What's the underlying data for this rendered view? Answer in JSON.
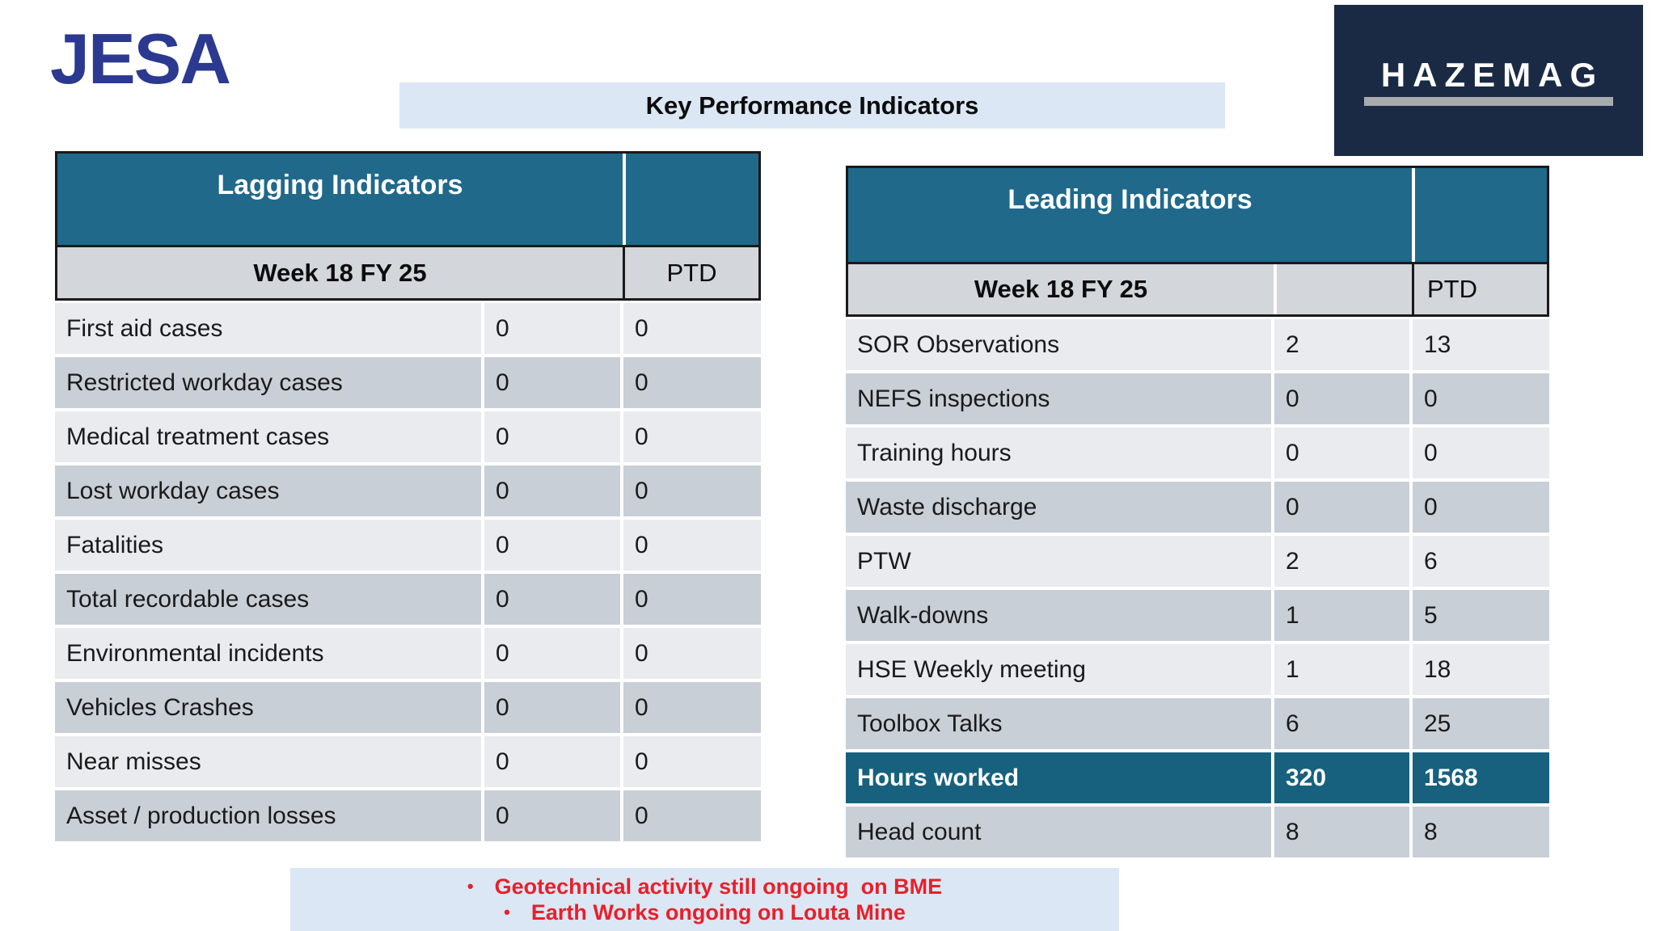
{
  "title": "Key Performance Indicators",
  "logos": {
    "jesa": "JESA",
    "hazemag": "HAZEMAG"
  },
  "lagging": {
    "header": "Lagging   Indicators",
    "week_label": "Week 18 FY 25",
    "ptd_label": "PTD",
    "rows": [
      {
        "label": "First aid cases",
        "week": "0",
        "ptd": "0"
      },
      {
        "label": "Restricted workday cases",
        "week": "0",
        "ptd": "0"
      },
      {
        "label": "Medical treatment cases",
        "week": "0",
        "ptd": "0"
      },
      {
        "label": "Lost workday cases",
        "week": "0",
        "ptd": "0"
      },
      {
        "label": "Fatalities",
        "week": "0",
        "ptd": "0"
      },
      {
        "label": "Total recordable cases",
        "week": "0",
        "ptd": "0"
      },
      {
        "label": "Environmental incidents",
        "week": "0",
        "ptd": "0"
      },
      {
        "label": "Vehicles Crashes",
        "week": "0",
        "ptd": "0"
      },
      {
        "label": "Near misses",
        "week": "0",
        "ptd": "0"
      },
      {
        "label": "Asset / production losses",
        "week": "0",
        "ptd": "0"
      }
    ]
  },
  "leading": {
    "header": "Leading  Indicators",
    "week_label": "Week 18 FY 25",
    "ptd_label": "PTD",
    "rows": [
      {
        "label": "SOR Observations",
        "week": "2",
        "ptd": "13"
      },
      {
        "label": "NEFS inspections",
        "week": "0",
        "ptd": "0"
      },
      {
        "label": "Training hours",
        "week": "0",
        "ptd": "0"
      },
      {
        "label": "Waste discharge",
        "week": "0",
        "ptd": "0"
      },
      {
        "label": "PTW",
        "week": "2",
        "ptd": "6"
      },
      {
        "label": "Walk-downs",
        "week": "1",
        "ptd": "5"
      },
      {
        "label": "HSE Weekly meeting",
        "week": "1",
        "ptd": "18"
      },
      {
        "label": "Toolbox Talks",
        "week": "6",
        "ptd": "25"
      },
      {
        "label": "Hours worked",
        "week": "320",
        "ptd": "1568",
        "highlight": true
      },
      {
        "label": "Head count",
        "week": "8",
        "ptd": "8"
      }
    ]
  },
  "notes": {
    "bullet": "•",
    "lines": [
      "Geotechnical activity still ongoing  on BME",
      "Earth Works ongoing on Louta Mine"
    ]
  },
  "colors": {
    "teal_header": "#20698B",
    "highlight_row": "#17617F",
    "row_light": "#E9EBEE",
    "row_dark": "#C9CFD7",
    "week_row": "#D3D6DB",
    "band_blue": "#DBE7F4",
    "note_red": "#E8202A",
    "jesa_navy": "#2B3990",
    "hazemag_navy": "#1B2A44"
  }
}
